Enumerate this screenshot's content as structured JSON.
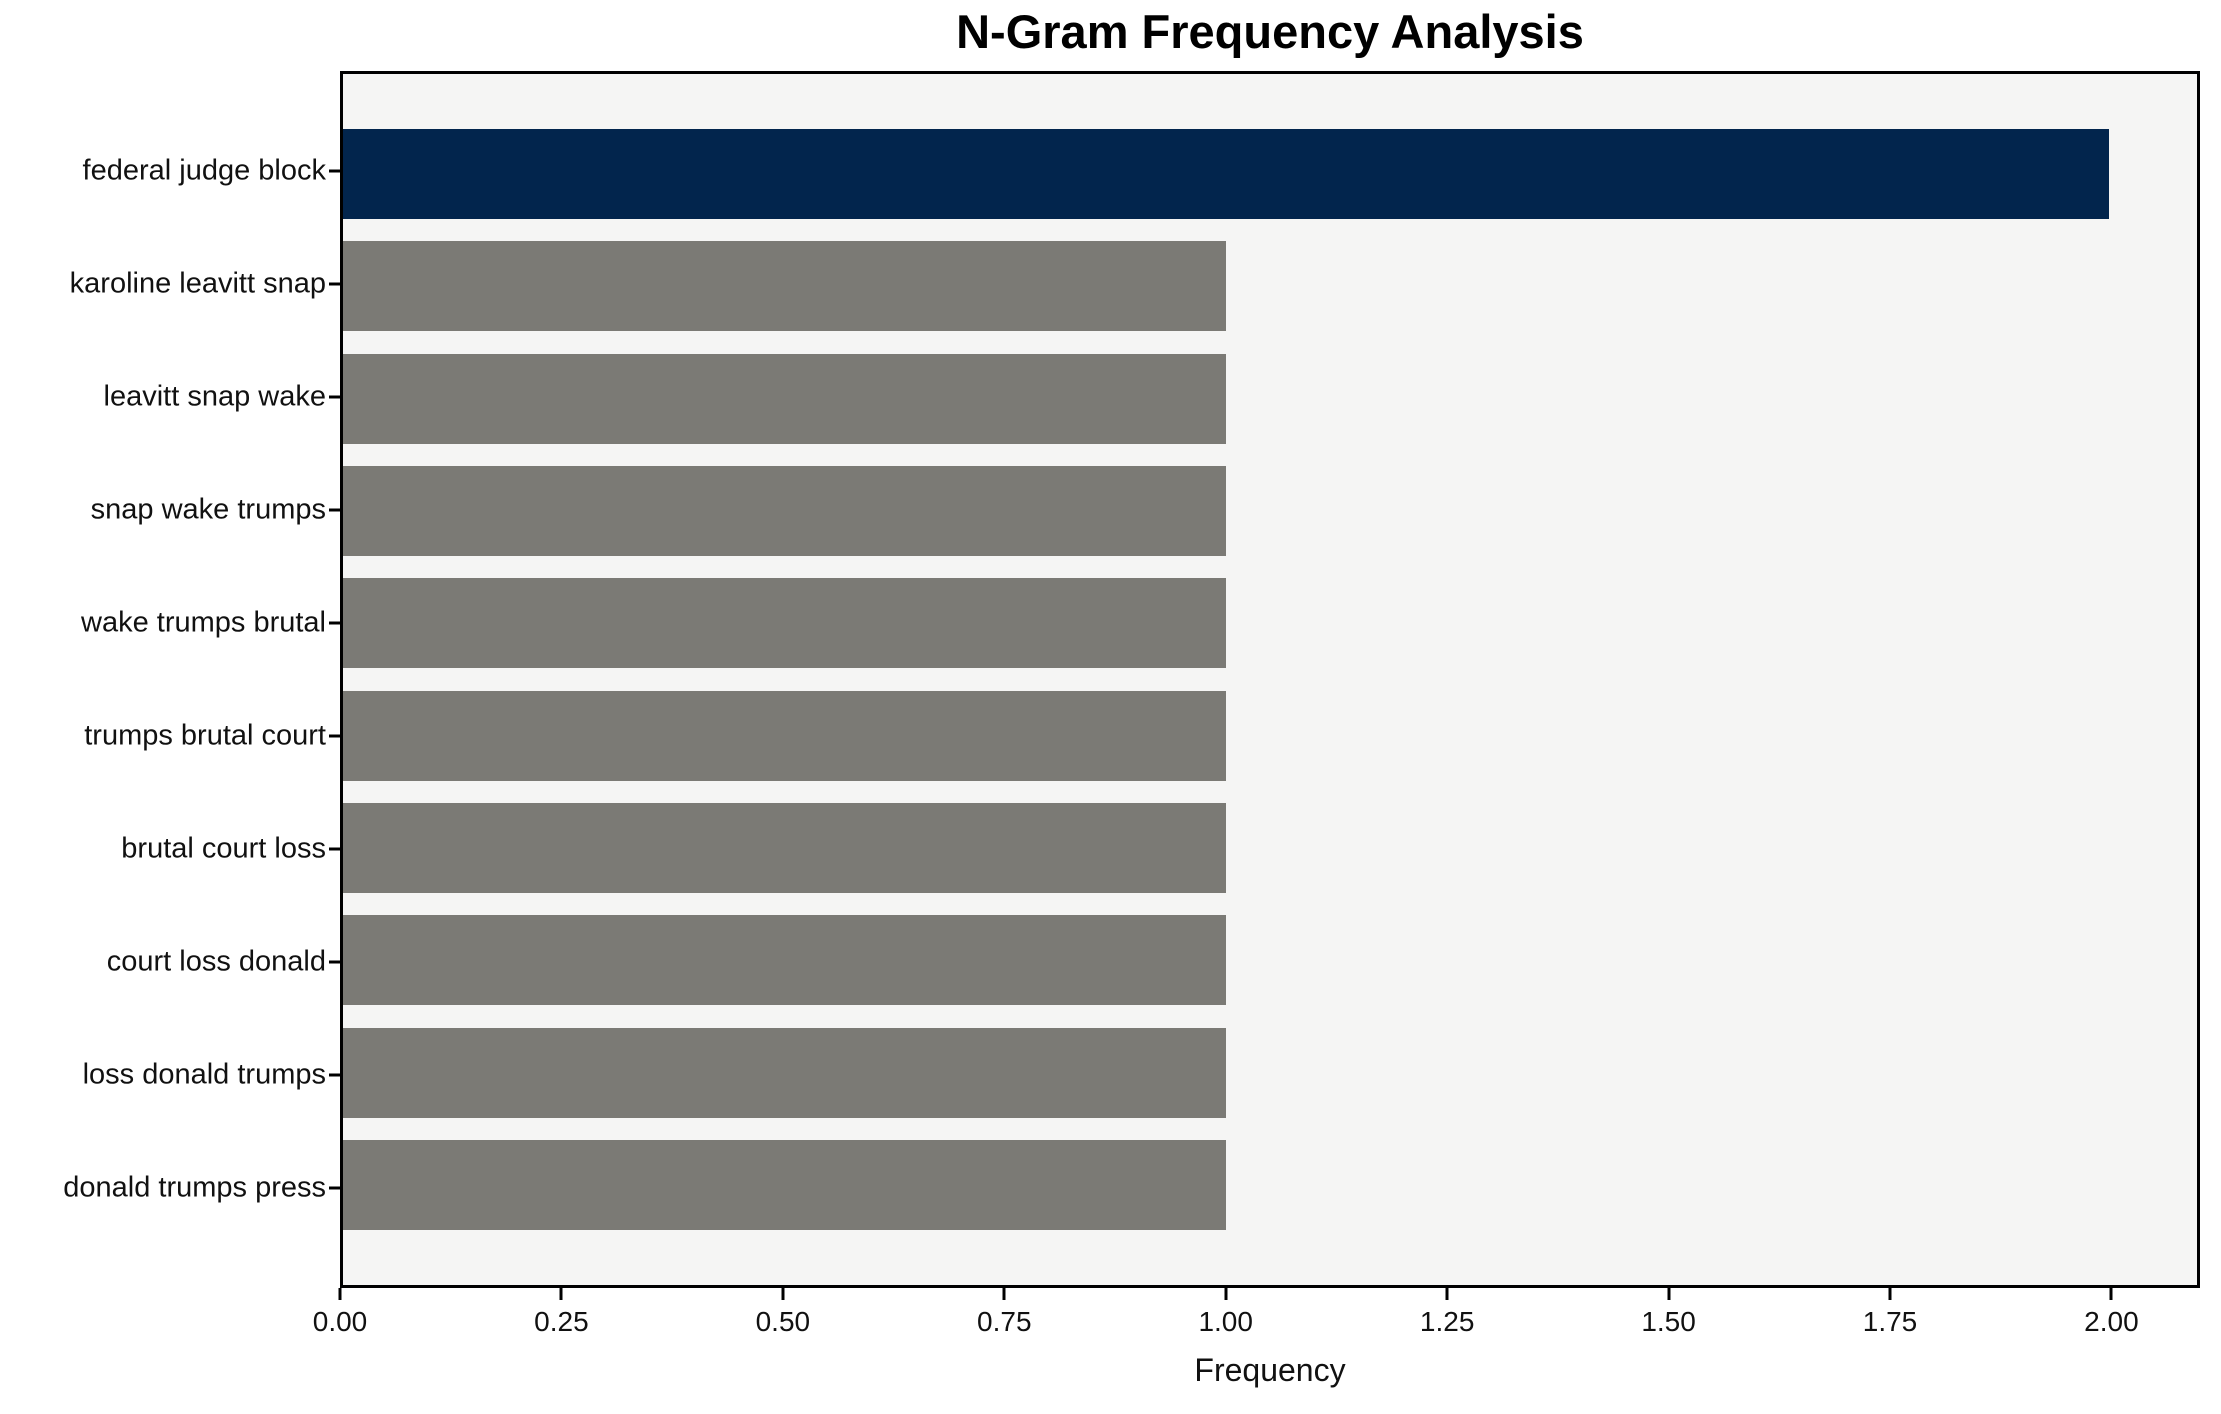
{
  "chart_data": {
    "type": "bar",
    "orientation": "horizontal",
    "title": "N-Gram Frequency Analysis",
    "xlabel": "Frequency",
    "ylabel": "",
    "categories": [
      "federal judge block",
      "karoline leavitt snap",
      "leavitt snap wake",
      "snap wake trumps",
      "wake trumps brutal",
      "trumps brutal court",
      "brutal court loss",
      "court loss donald",
      "loss donald trumps",
      "donald trumps press"
    ],
    "values": [
      2,
      1,
      1,
      1,
      1,
      1,
      1,
      1,
      1,
      1
    ],
    "xlim": [
      0,
      2.1
    ],
    "xticks": [
      0.0,
      0.25,
      0.5,
      0.75,
      1.0,
      1.25,
      1.5,
      1.75,
      2.0
    ],
    "xtick_labels": [
      "0.00",
      "0.25",
      "0.50",
      "0.75",
      "1.00",
      "1.25",
      "1.50",
      "1.75",
      "2.00"
    ],
    "bar_height_fraction": 0.8,
    "grid": false,
    "legend_position": "none",
    "highlight_index": 0,
    "colors": {
      "highlight_bar": "#02254d",
      "default_bar": "#7b7a75",
      "plot_background": "#f5f5f4",
      "figure_background": "#ffffff",
      "frame": "#000000",
      "text": "#000000"
    }
  }
}
